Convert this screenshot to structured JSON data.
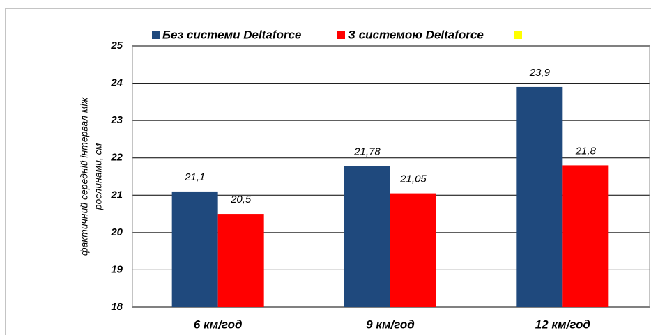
{
  "chart_data": {
    "type": "bar",
    "categories": [
      "6 км/год",
      "9 км/год",
      "12 км/год"
    ],
    "series": [
      {
        "name": "Без системи Deltaforce",
        "color": "#1f497d",
        "values": [
          21.1,
          21.78,
          23.9
        ],
        "value_labels": [
          "21,1",
          "21,78",
          "23,9"
        ]
      },
      {
        "name": "З системою Deltaforce",
        "color": "#ff0000",
        "values": [
          20.5,
          21.05,
          21.8
        ],
        "value_labels": [
          "20,5",
          "21,05",
          "21,8"
        ]
      }
    ],
    "y_label": [
      "фактичний середній інтервал між",
      "рослинами, см"
    ],
    "ylim": [
      18,
      25
    ],
    "yticks": [
      18,
      19,
      20,
      21,
      22,
      23,
      24,
      25
    ],
    "grid": true,
    "legend": "top"
  }
}
